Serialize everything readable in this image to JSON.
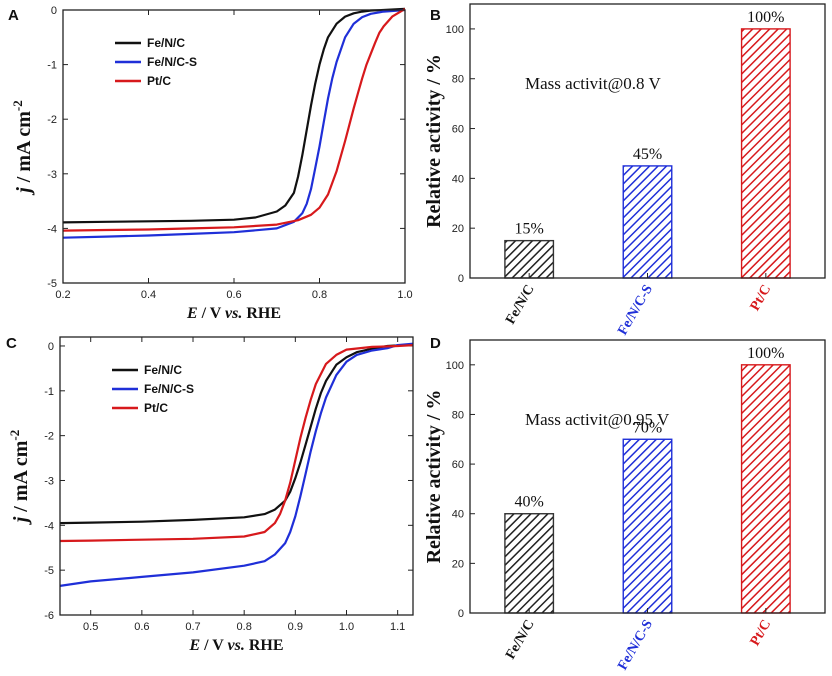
{
  "chart_data": [
    {
      "panel": "A",
      "type": "line",
      "xlabel_parts": [
        "E",
        " / V ",
        "vs.",
        " RHE"
      ],
      "ylabel_parts": [
        "j",
        " / mA cm",
        "-2"
      ],
      "xlim": [
        0.2,
        1.0
      ],
      "ylim": [
        -5,
        0
      ],
      "xticks": [
        0.2,
        0.4,
        0.6,
        0.8,
        1.0
      ],
      "xtick_labels": [
        "0.2",
        "0.4",
        "0.6",
        "0.8",
        "1.0"
      ],
      "yticks": [
        -5,
        -4,
        -3,
        -2,
        -1,
        0
      ],
      "ytick_labels": [
        "-5",
        "-4",
        "-3",
        "-2",
        "-1",
        "0"
      ],
      "legend": [
        "Fe/N/C",
        "Fe/N/C-S",
        "Pt/C"
      ],
      "series": [
        {
          "name": "Fe/N/C",
          "color": "#111111",
          "x": [
            0.2,
            0.3,
            0.4,
            0.5,
            0.6,
            0.65,
            0.7,
            0.72,
            0.74,
            0.75,
            0.76,
            0.77,
            0.78,
            0.79,
            0.8,
            0.81,
            0.82,
            0.84,
            0.86,
            0.88,
            0.9,
            0.92,
            0.95,
            1.0
          ],
          "y": [
            -3.89,
            -3.88,
            -3.87,
            -3.86,
            -3.84,
            -3.8,
            -3.69,
            -3.58,
            -3.35,
            -3.05,
            -2.65,
            -2.2,
            -1.75,
            -1.35,
            -1.0,
            -0.72,
            -0.5,
            -0.25,
            -0.12,
            -0.06,
            -0.03,
            -0.01,
            0.0,
            0.02
          ]
        },
        {
          "name": "Fe/N/C-S",
          "color": "#1f2fd8",
          "x": [
            0.2,
            0.3,
            0.4,
            0.5,
            0.6,
            0.7,
            0.74,
            0.76,
            0.77,
            0.78,
            0.79,
            0.8,
            0.81,
            0.82,
            0.83,
            0.84,
            0.86,
            0.88,
            0.9,
            0.92,
            0.95,
            1.0
          ],
          "y": [
            -4.17,
            -4.15,
            -4.13,
            -4.1,
            -4.07,
            -4.0,
            -3.88,
            -3.72,
            -3.55,
            -3.28,
            -2.9,
            -2.5,
            -2.05,
            -1.62,
            -1.25,
            -0.95,
            -0.5,
            -0.25,
            -0.13,
            -0.07,
            -0.03,
            0.0
          ]
        },
        {
          "name": "Pt/C",
          "color": "#d7191c",
          "x": [
            0.2,
            0.3,
            0.4,
            0.5,
            0.6,
            0.7,
            0.75,
            0.78,
            0.8,
            0.82,
            0.84,
            0.86,
            0.87,
            0.88,
            0.89,
            0.9,
            0.91,
            0.92,
            0.93,
            0.94,
            0.95,
            0.97,
            1.0
          ],
          "y": [
            -4.04,
            -4.03,
            -4.02,
            -4.0,
            -3.98,
            -3.93,
            -3.85,
            -3.75,
            -3.62,
            -3.38,
            -2.95,
            -2.4,
            -2.1,
            -1.8,
            -1.52,
            -1.25,
            -1.0,
            -0.8,
            -0.6,
            -0.42,
            -0.3,
            -0.12,
            0.02
          ]
        }
      ]
    },
    {
      "panel": "B",
      "type": "bar",
      "annotation": "Mass activit@0.8 V",
      "ylabel": "Relative activity / %",
      "ylim": [
        0,
        110
      ],
      "yticks": [
        0,
        20,
        40,
        60,
        80,
        100
      ],
      "ytick_labels": [
        "0",
        "20",
        "40",
        "60",
        "80",
        "100"
      ],
      "categories": [
        "Fe/N/C",
        "Fe/N/C-S",
        "Pt/C"
      ],
      "values": [
        15,
        45,
        100
      ],
      "value_labels": [
        "15%",
        "45%",
        "100%"
      ],
      "colors": [
        "#333333",
        "#1f2fd8",
        "#d7191c"
      ],
      "label_colors": [
        "#111111",
        "#1f2fd8",
        "#d7191c"
      ]
    },
    {
      "panel": "C",
      "type": "line",
      "xlabel_parts": [
        "E",
        " / V ",
        "vs.",
        " RHE"
      ],
      "ylabel_parts": [
        "j",
        " / mA cm",
        "-2"
      ],
      "xlim": [
        0.44,
        1.13
      ],
      "ylim": [
        -6,
        0.2
      ],
      "xticks": [
        0.5,
        0.6,
        0.7,
        0.8,
        0.9,
        1.0,
        1.1
      ],
      "xtick_labels": [
        "0.5",
        "0.6",
        "0.7",
        "0.8",
        "0.9",
        "1.0",
        "1.1"
      ],
      "yticks": [
        -6,
        -5,
        -4,
        -3,
        -2,
        -1,
        0
      ],
      "ytick_labels": [
        "-6",
        "-5",
        "-4",
        "-3",
        "-2",
        "-1",
        "0"
      ],
      "legend": [
        "Fe/N/C",
        "Fe/N/C-S",
        "Pt/C"
      ],
      "series": [
        {
          "name": "Fe/N/C",
          "color": "#111111",
          "x": [
            0.44,
            0.5,
            0.6,
            0.7,
            0.8,
            0.84,
            0.86,
            0.88,
            0.89,
            0.9,
            0.91,
            0.92,
            0.93,
            0.94,
            0.95,
            0.96,
            0.98,
            1.0,
            1.02,
            1.05,
            1.08,
            1.13
          ],
          "y": [
            -3.95,
            -3.94,
            -3.92,
            -3.88,
            -3.82,
            -3.75,
            -3.65,
            -3.45,
            -3.25,
            -2.95,
            -2.6,
            -2.2,
            -1.8,
            -1.4,
            -1.05,
            -0.78,
            -0.42,
            -0.25,
            -0.14,
            -0.06,
            0.0,
            0.03
          ]
        },
        {
          "name": "Fe/N/C-S",
          "color": "#1f2fd8",
          "x": [
            0.44,
            0.5,
            0.6,
            0.7,
            0.8,
            0.84,
            0.86,
            0.88,
            0.89,
            0.9,
            0.91,
            0.92,
            0.93,
            0.94,
            0.95,
            0.96,
            0.98,
            1.0,
            1.02,
            1.05,
            1.08,
            1.1,
            1.13
          ],
          "y": [
            -5.35,
            -5.25,
            -5.15,
            -5.05,
            -4.9,
            -4.8,
            -4.65,
            -4.4,
            -4.15,
            -3.8,
            -3.35,
            -2.85,
            -2.35,
            -1.9,
            -1.5,
            -1.15,
            -0.65,
            -0.35,
            -0.2,
            -0.1,
            -0.05,
            0.02,
            0.05
          ]
        },
        {
          "name": "Pt/C",
          "color": "#d7191c",
          "x": [
            0.44,
            0.5,
            0.6,
            0.7,
            0.8,
            0.84,
            0.86,
            0.87,
            0.88,
            0.89,
            0.9,
            0.91,
            0.92,
            0.93,
            0.94,
            0.96,
            0.98,
            1.0,
            1.05,
            1.1,
            1.13
          ],
          "y": [
            -4.35,
            -4.34,
            -4.32,
            -4.3,
            -4.25,
            -4.15,
            -3.95,
            -3.75,
            -3.45,
            -3.05,
            -2.55,
            -2.05,
            -1.6,
            -1.2,
            -0.85,
            -0.4,
            -0.2,
            -0.08,
            -0.02,
            0.0,
            0.02
          ]
        }
      ]
    },
    {
      "panel": "D",
      "type": "bar",
      "annotation": "Mass activit@0.95 V",
      "ylabel": "Relative activity / %",
      "ylim": [
        0,
        110
      ],
      "yticks": [
        0,
        20,
        40,
        60,
        80,
        100
      ],
      "ytick_labels": [
        "0",
        "20",
        "40",
        "60",
        "80",
        "100"
      ],
      "categories": [
        "Fe/N/C",
        "Fe/N/C-S",
        "Pt/C"
      ],
      "values": [
        40,
        70,
        100
      ],
      "value_labels": [
        "40%",
        "70%",
        "100%"
      ],
      "colors": [
        "#333333",
        "#1f2fd8",
        "#d7191c"
      ],
      "label_colors": [
        "#111111",
        "#1f2fd8",
        "#d7191c"
      ]
    }
  ]
}
